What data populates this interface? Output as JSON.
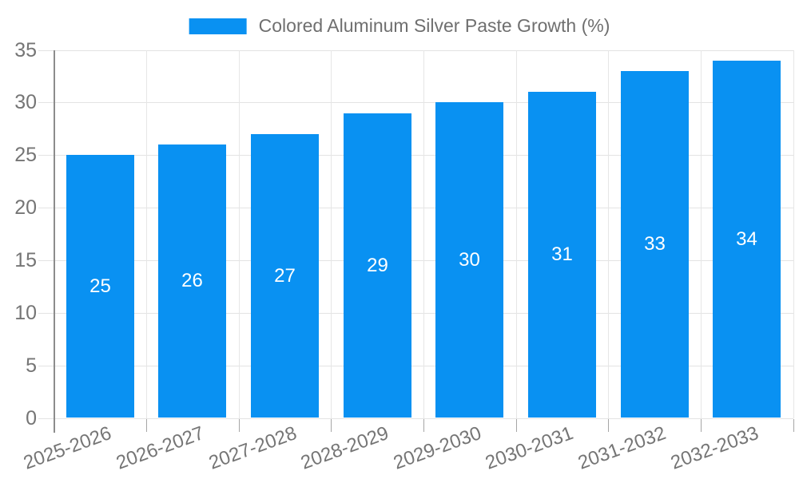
{
  "chart_data": {
    "type": "bar",
    "title": "Colored Aluminum Silver Paste Growth (%)",
    "categories": [
      "2025-2026",
      "2026-2027",
      "2027-2028",
      "2028-2029",
      "2029-2030",
      "2030-2031",
      "2031-2032",
      "2032-2033"
    ],
    "values": [
      25,
      26,
      27,
      29,
      30,
      31,
      33,
      34
    ],
    "xlabel": "",
    "ylabel": "",
    "ylim": [
      0,
      35
    ],
    "ytick_step": 5,
    "ytick_labels": [
      "0",
      "5",
      "10",
      "15",
      "20",
      "25",
      "30",
      "35"
    ],
    "grid": true,
    "legend_position": "top-center",
    "bar_color": "#0991f2",
    "value_label_color": "#ffffff",
    "axis_text_color": "#757575",
    "grid_color": "#e3e3e3",
    "axis_line_color": "#8c8c8c"
  }
}
